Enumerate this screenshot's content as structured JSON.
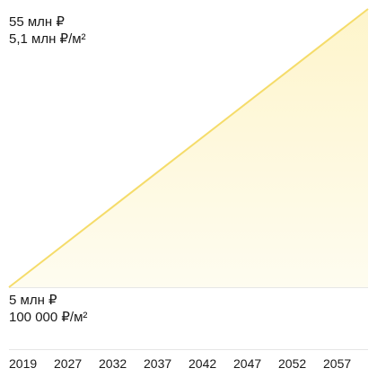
{
  "chart_data": {
    "type": "area",
    "title": "",
    "xlabel": "",
    "ylabel": "",
    "y_top_labels": [
      "55 млн ₽",
      "5,1 млн ₽/м²"
    ],
    "y_bottom_labels": [
      "5 млн ₽",
      "100 000 ₽/м²"
    ],
    "tick_labels": [
      "2019",
      "2027",
      "2032",
      "2037",
      "2042",
      "2047",
      "2052",
      "2057"
    ],
    "x": [
      2019,
      2062
    ],
    "series": [
      {
        "values": [
          5,
          55
        ]
      }
    ],
    "ylim": [
      5,
      55
    ],
    "grid": true,
    "legend": "none",
    "colors": {
      "line": "#f5dc6a",
      "fill": "#fdf3c2",
      "grid": "#e6e6e6"
    }
  }
}
